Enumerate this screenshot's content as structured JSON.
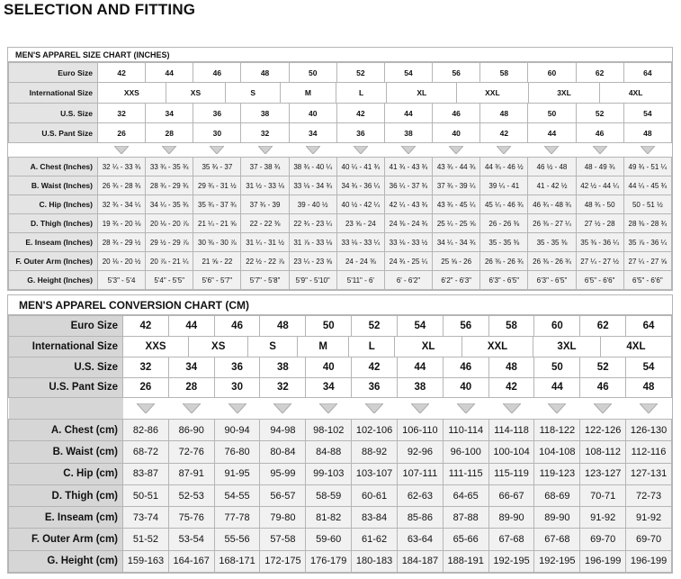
{
  "title": "SELECTION AND FITTING",
  "charts": [
    {
      "title": "MEN'S APPAREL SIZE CHART (INCHES)",
      "size_rows": [
        {
          "label": "Euro Size",
          "values": [
            42,
            44,
            46,
            48,
            50,
            52,
            54,
            56,
            58,
            60,
            62,
            64
          ]
        },
        {
          "label": "International Size",
          "values": [
            "XXS",
            "XS",
            "S",
            "M",
            "L",
            "XL",
            "XXL",
            "3XL",
            "4XL"
          ]
        },
        {
          "label": "U.S. Size",
          "values": [
            32,
            34,
            36,
            38,
            40,
            42,
            44,
            46,
            48,
            50,
            52,
            54
          ]
        },
        {
          "label": "U.S. Pant Size",
          "values": [
            26,
            28,
            30,
            32,
            34,
            36,
            38,
            40,
            42,
            44,
            46,
            48
          ]
        }
      ],
      "measure_rows": [
        {
          "label": "A. Chest (Inches)",
          "values": [
            "32 ¼ - 33 ¾",
            "33 ¾ - 35 ¾",
            "35 ¾ - 37",
            "37 - 38 ¾",
            "38 ¾ - 40 ¼",
            "40 ¼ - 41 ¾",
            "41 ¾ - 43 ¾",
            "43 ¾ - 44 ¾",
            "44 ¾ - 46 ½",
            "46 ½ - 48",
            "48 - 49 ¾",
            "49 ¾ - 51 ¼"
          ]
        },
        {
          "label": "B. Waist (Inches)",
          "values": [
            "26 ¾ - 28 ¾",
            "28 ¾ - 29 ¾",
            "29 ¾ - 31 ½",
            "31 ½ - 33 ⅛",
            "33 ⅛ - 34 ¾",
            "34 ¾ - 36 ¼",
            "36 ¼ - 37 ¾",
            "37 ¾ - 39 ¼",
            "39 ¼ - 41",
            "41 - 42 ½",
            "42 ½ - 44 ¼",
            "44 ¼ - 45 ¾"
          ]
        },
        {
          "label": "C. Hip (Inches)",
          "values": [
            "32 ¾ - 34 ¼",
            "34 ¼ - 35 ¾",
            "35 ¾ - 37 ¾",
            "37 ¾ - 39",
            "39 - 40 ½",
            "40 ½ - 42 ¼",
            "42 ¼ - 43 ¾",
            "43 ¾ - 45 ¼",
            "45 ¼ - 46 ¾",
            "46 ¾ - 48 ¾",
            "48 ¾ - 50",
            "50 - 51 ½"
          ]
        },
        {
          "label": "D. Thigh (Inches)",
          "values": [
            "19 ¾ - 20 ⅛",
            "20 ⅛ - 20 ⅞",
            "21 ¼ - 21 ⅝",
            "22 - 22 ⅜",
            "22 ¾ - 23 ¼",
            "23 ⅝ - 24",
            "24 ⅜ - 24 ¾",
            "25 ¼ - 25 ⅝",
            "26 - 26 ⅜",
            "26 ⅜ - 27 ¼",
            "27 ½ - 28",
            "28 ⅜ - 28 ¾"
          ]
        },
        {
          "label": "E. Inseam (Inches)",
          "values": [
            "28 ¾ - 29 ½",
            "29 ½ - 29 ⅞",
            "30 ⅜ - 30 ⅞",
            "31 ¼ - 31 ½",
            "31 ⅞ - 33 ⅛",
            "33 ⅛ - 33 ¼",
            "33 ⅛ - 33 ½",
            "34 ¼ - 34 ¾",
            "35 - 35 ⅜",
            "35 - 35 ⅜",
            "35 ⅜ - 36 ¼",
            "35 ⅞ - 36 ¼"
          ]
        },
        {
          "label": "F. Outer Arm (Inches)",
          "values": [
            "20 ⅛ - 20 ½",
            "20 ⅞ - 21 ¼",
            "21 ⅝ - 22",
            "22 ½ - 22 ⅞",
            "23 ¼ - 23 ⅝",
            "24 - 24 ⅜",
            "24 ¾ - 25 ¼",
            "25 ⅝ - 26",
            "26 ⅜ - 26 ¾",
            "26 ⅜ - 26 ¾",
            "27 ¼ - 27 ½",
            "27 ¼ - 27 ⅝"
          ]
        },
        {
          "label": "G. Height (Inches)",
          "values": [
            "5'3\" - 5'4",
            "5'4\" - 5'5\"",
            "5'6\" - 5'7\"",
            "5'7\" - 5'8\"",
            "5'9\" - 5'10\"",
            "5'11\" - 6'",
            "6' - 6'2\"",
            "6'2\" - 6'3\"",
            "6'3\" - 6'5\"",
            "6'3\" - 6'5\"",
            "6'5\" - 6'6\"",
            "6'5\" - 6'6\""
          ]
        }
      ]
    },
    {
      "title": "MEN'S APPAREL CONVERSION CHART (CM)",
      "size_rows": [
        {
          "label": "Euro Size",
          "values": [
            42,
            44,
            46,
            48,
            50,
            52,
            54,
            56,
            58,
            60,
            62,
            64
          ]
        },
        {
          "label": "International Size",
          "values": [
            "XXS",
            "XS",
            "S",
            "M",
            "L",
            "XL",
            "XXL",
            "3XL",
            "4XL"
          ]
        },
        {
          "label": "U.S. Size",
          "values": [
            32,
            34,
            36,
            38,
            40,
            42,
            44,
            46,
            48,
            50,
            52,
            54
          ]
        },
        {
          "label": "U.S. Pant Size",
          "values": [
            26,
            28,
            30,
            32,
            34,
            36,
            38,
            40,
            42,
            44,
            46,
            48
          ]
        }
      ],
      "measure_rows": [
        {
          "label": "A. Chest (cm)",
          "values": [
            "82-86",
            "86-90",
            "90-94",
            "94-98",
            "98-102",
            "102-106",
            "106-110",
            "110-114",
            "114-118",
            "118-122",
            "122-126",
            "126-130"
          ]
        },
        {
          "label": "B. Waist (cm)",
          "values": [
            "68-72",
            "72-76",
            "76-80",
            "80-84",
            "84-88",
            "88-92",
            "92-96",
            "96-100",
            "100-104",
            "104-108",
            "108-112",
            "112-116"
          ]
        },
        {
          "label": "C. Hip (cm)",
          "values": [
            "83-87",
            "87-91",
            "91-95",
            "95-99",
            "99-103",
            "103-107",
            "107-111",
            "111-115",
            "115-119",
            "119-123",
            "123-127",
            "127-131"
          ]
        },
        {
          "label": "D. Thigh (cm)",
          "values": [
            "50-51",
            "52-53",
            "54-55",
            "56-57",
            "58-59",
            "60-61",
            "62-63",
            "64-65",
            "66-67",
            "68-69",
            "70-71",
            "72-73"
          ]
        },
        {
          "label": "E. Inseam (cm)",
          "values": [
            "73-74",
            "75-76",
            "77-78",
            "79-80",
            "81-82",
            "83-84",
            "85-86",
            "87-88",
            "89-90",
            "89-90",
            "91-92",
            "91-92"
          ]
        },
        {
          "label": "F. Outer Arm (cm)",
          "values": [
            "51-52",
            "53-54",
            "55-56",
            "57-58",
            "59-60",
            "61-62",
            "63-64",
            "65-66",
            "67-68",
            "67-68",
            "69-70",
            "69-70"
          ]
        },
        {
          "label": "G. Height (cm)",
          "values": [
            "159-163",
            "164-167",
            "168-171",
            "172-175",
            "176-179",
            "180-183",
            "184-187",
            "188-191",
            "192-195",
            "192-195",
            "196-199",
            "196-199"
          ]
        }
      ]
    }
  ]
}
